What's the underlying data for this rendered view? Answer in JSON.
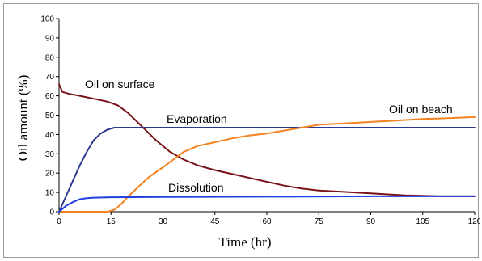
{
  "chart_data": {
    "type": "line",
    "title": "",
    "xlabel": "Time (hr)",
    "ylabel": "Oil amount (%)",
    "xlim": [
      0,
      120
    ],
    "ylim": [
      0,
      100
    ],
    "x_ticks": [
      "0",
      "15",
      "30",
      "45",
      "60",
      "75",
      "90",
      "105",
      "120"
    ],
    "y_ticks": [
      "0",
      "10",
      "20",
      "30",
      "40",
      "50",
      "60",
      "70",
      "80",
      "90",
      "100"
    ],
    "grid": false,
    "legend": "none",
    "series": [
      {
        "name": "Oil on surface",
        "color": "#7a1418",
        "points": [
          [
            0,
            66
          ],
          [
            1,
            62
          ],
          [
            3,
            61
          ],
          [
            6,
            60
          ],
          [
            10,
            58.5
          ],
          [
            14,
            57
          ],
          [
            17,
            55
          ],
          [
            20,
            51
          ],
          [
            24,
            44
          ],
          [
            28,
            37
          ],
          [
            32,
            31
          ],
          [
            36,
            27
          ],
          [
            40,
            24
          ],
          [
            45,
            21.5
          ],
          [
            50,
            19.5
          ],
          [
            55,
            17.5
          ],
          [
            60,
            15.5
          ],
          [
            65,
            13.5
          ],
          [
            70,
            12
          ],
          [
            75,
            11
          ],
          [
            80,
            10.5
          ],
          [
            90,
            9.5
          ],
          [
            100,
            8.5
          ],
          [
            110,
            8
          ],
          [
            120,
            8
          ]
        ]
      },
      {
        "name": "Evaporation",
        "color": "#2b3990",
        "points": [
          [
            0,
            0
          ],
          [
            2,
            8
          ],
          [
            4,
            16
          ],
          [
            6,
            24
          ],
          [
            8,
            31
          ],
          [
            10,
            37
          ],
          [
            12,
            40.5
          ],
          [
            14,
            42.5
          ],
          [
            16,
            43.5
          ],
          [
            20,
            43.5
          ],
          [
            40,
            43.5
          ],
          [
            60,
            43.5
          ],
          [
            80,
            43.5
          ],
          [
            100,
            43.5
          ],
          [
            120,
            43.5
          ]
        ]
      },
      {
        "name": "Oil on beach",
        "color": "#f58220",
        "points": [
          [
            0,
            0
          ],
          [
            14,
            0
          ],
          [
            16,
            1
          ],
          [
            18,
            4
          ],
          [
            20,
            8
          ],
          [
            23,
            13
          ],
          [
            26,
            18
          ],
          [
            30,
            23
          ],
          [
            33,
            27
          ],
          [
            36,
            31
          ],
          [
            40,
            34
          ],
          [
            45,
            36
          ],
          [
            50,
            38
          ],
          [
            55,
            39.5
          ],
          [
            60,
            40.5
          ],
          [
            65,
            42
          ],
          [
            70,
            43.5
          ],
          [
            75,
            45
          ],
          [
            80,
            45.5
          ],
          [
            85,
            46
          ],
          [
            90,
            46.5
          ],
          [
            95,
            47
          ],
          [
            100,
            47.5
          ],
          [
            105,
            48
          ],
          [
            110,
            48.3
          ],
          [
            115,
            48.6
          ],
          [
            120,
            49
          ]
        ]
      },
      {
        "name": "Dissolution",
        "color": "#1f3fe0",
        "points": [
          [
            0,
            0
          ],
          [
            2,
            3
          ],
          [
            4,
            5
          ],
          [
            6,
            6.5
          ],
          [
            8,
            7
          ],
          [
            10,
            7.3
          ],
          [
            15,
            7.5
          ],
          [
            30,
            7.6
          ],
          [
            60,
            7.8
          ],
          [
            90,
            8
          ],
          [
            120,
            8
          ]
        ]
      }
    ],
    "annotations": [
      "Oil on surface",
      "Evaporation",
      "Oil on beach",
      "Dissolution"
    ]
  }
}
